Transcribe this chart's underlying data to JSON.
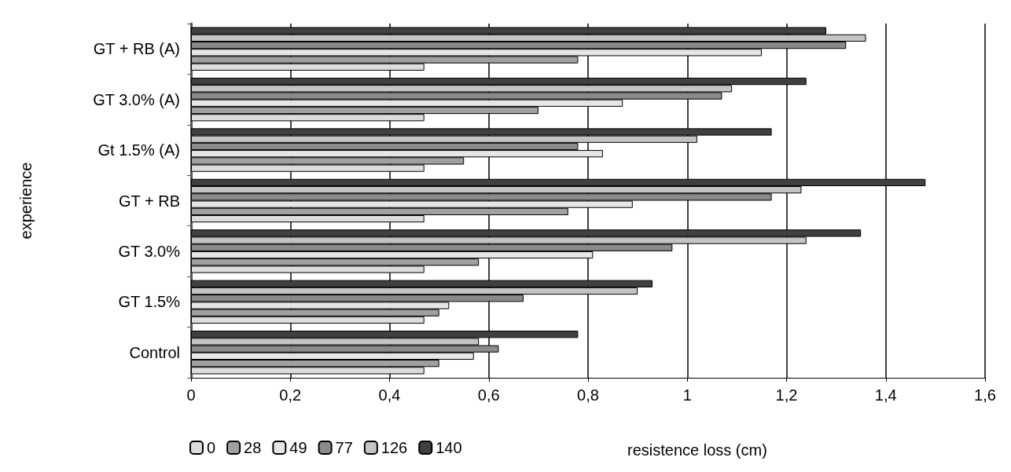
{
  "chart_data": {
    "type": "bar",
    "orientation": "horizontal",
    "xlabel": "resistence loss (cm)",
    "ylabel": "experience",
    "categories": [
      "GT + RB (A)",
      "GT 3.0% (A)",
      "Gt 1.5% (A)",
      "GT + RB",
      "GT 3.0%",
      "GT 1.5%",
      "Control"
    ],
    "series": [
      {
        "name": "0",
        "color": "#dcdcdc",
        "values": [
          0.47,
          0.47,
          0.47,
          0.47,
          0.47,
          0.47,
          0.47
        ]
      },
      {
        "name": "28",
        "color": "#a0a0a0",
        "values": [
          0.78,
          0.7,
          0.55,
          0.76,
          0.58,
          0.5,
          0.5
        ]
      },
      {
        "name": "49",
        "color": "#e6e6e6",
        "values": [
          1.15,
          0.87,
          0.83,
          0.89,
          0.81,
          0.52,
          0.57
        ]
      },
      {
        "name": "77",
        "color": "#8a8a8a",
        "values": [
          1.32,
          1.07,
          0.78,
          1.17,
          0.97,
          0.67,
          0.62
        ]
      },
      {
        "name": "126",
        "color": "#c4c4c4",
        "values": [
          1.36,
          1.09,
          1.02,
          1.23,
          1.24,
          0.9,
          0.58
        ]
      },
      {
        "name": "140",
        "color": "#404040",
        "values": [
          1.28,
          1.24,
          1.17,
          1.48,
          1.35,
          0.93,
          0.78
        ]
      }
    ],
    "xlim": [
      0,
      1.6
    ],
    "xticks": [
      0,
      {
        "value": 0.2,
        "label": "0,2"
      },
      {
        "value": 0.4,
        "label": "0,4"
      },
      {
        "value": 0.6,
        "label": "0,6"
      },
      {
        "value": 0.8,
        "label": "0,8"
      },
      1,
      {
        "value": 1.2,
        "label": "1,2"
      },
      {
        "value": 1.4,
        "label": "1,4"
      },
      {
        "value": 1.6,
        "label": "1,6"
      }
    ],
    "grid": "x",
    "legend": "bottom left"
  }
}
